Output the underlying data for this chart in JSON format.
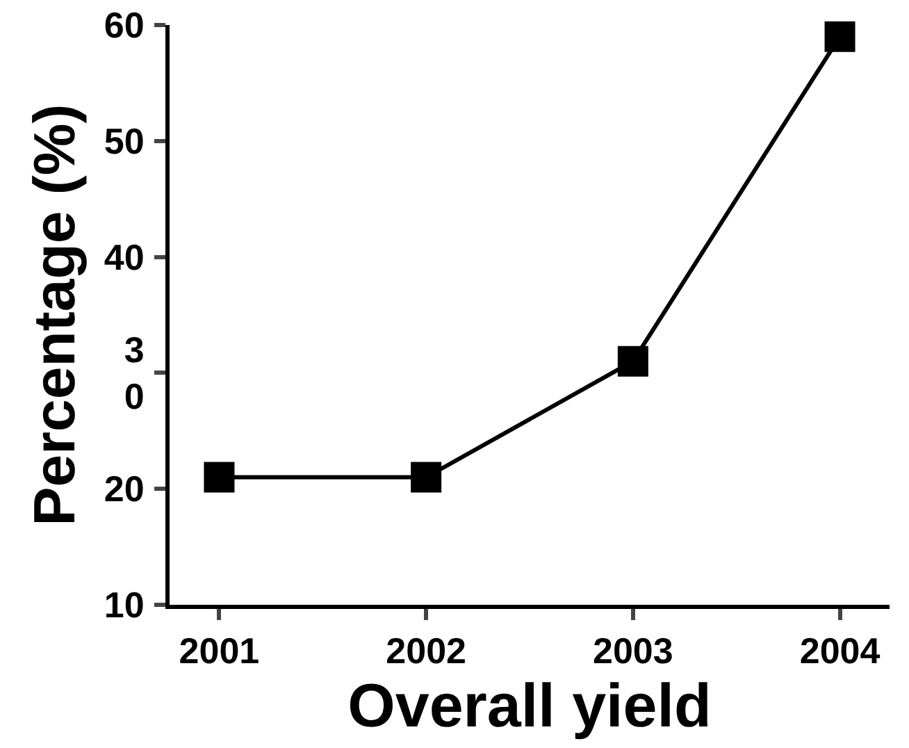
{
  "chart_data": {
    "type": "line",
    "xlabel": "Overall yield",
    "ylabel": "Percentage (%)",
    "categories": [
      "2001",
      "2002",
      "2003",
      "2004"
    ],
    "series": [
      {
        "color": "#000000",
        "values": [
          21,
          21,
          31,
          59
        ]
      }
    ],
    "ylim": [
      10,
      60
    ],
    "yticks": [
      10,
      20,
      {
        "value": 30,
        "label": "3\n0"
      },
      40,
      50,
      60
    ],
    "marker": "square",
    "line_style": "solid",
    "grid": false,
    "legend": false
  }
}
